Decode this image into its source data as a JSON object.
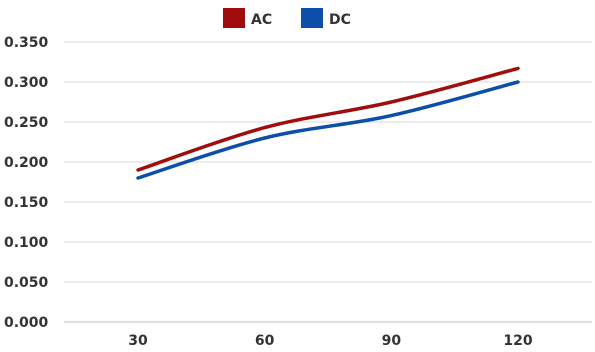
{
  "chart_data": {
    "type": "line",
    "x": [
      30,
      60,
      90,
      120
    ],
    "categories": [
      "30",
      "60",
      "90",
      "120"
    ],
    "series": [
      {
        "name": "AC",
        "color": "#a10d0d",
        "values": [
          0.19,
          0.243,
          0.275,
          0.317
        ]
      },
      {
        "name": "DC",
        "color": "#0b4fa8",
        "values": [
          0.18,
          0.23,
          0.258,
          0.3
        ]
      }
    ],
    "ylim": [
      0,
      0.35
    ],
    "yticks": [
      "0.000",
      "0.050",
      "0.100",
      "0.150",
      "0.200",
      "0.250",
      "0.300",
      "0.350"
    ],
    "grid": true,
    "legend": "top-center",
    "title": "",
    "xlabel": "",
    "ylabel": ""
  }
}
